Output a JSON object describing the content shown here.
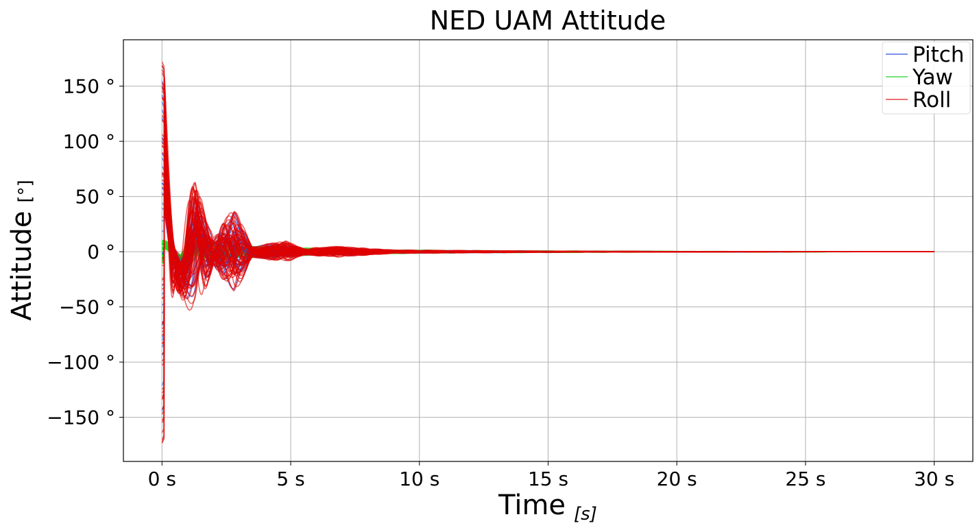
{
  "chart_data": {
    "type": "line",
    "title": "NED UAM Attitude",
    "xlabel": "Time",
    "xlabel_unit": "[s]",
    "ylabel": "Attitude",
    "ylabel_unit": "[°]",
    "xlim": [
      -1.5,
      31.5
    ],
    "ylim": [
      -190,
      192
    ],
    "xticks": [
      0,
      5,
      10,
      15,
      20,
      25,
      30
    ],
    "xtick_labels": [
      "0 s",
      "5 s",
      "10 s",
      "15 s",
      "20 s",
      "25 s",
      "30 s"
    ],
    "yticks": [
      150,
      100,
      50,
      0,
      -50,
      -100,
      -150
    ],
    "ytick_labels": [
      "150 °",
      "100 °",
      "50 °",
      "0 °",
      "−50 °",
      "−100 °",
      "−150 °"
    ],
    "grid": true,
    "legend_position": "top-right",
    "series": [
      {
        "name": "Pitch",
        "color": "#1f3fe0",
        "envelope": {
          "t": [
            0,
            0.1,
            0.5,
            1.2,
            2.0,
            2.8,
            3.5,
            4.5,
            5.5,
            7,
            9,
            12,
            15,
            20,
            30
          ],
          "upper": [
            155,
            150,
            25,
            55,
            15,
            40,
            5,
            8,
            3,
            4,
            1.5,
            1,
            0.5,
            0.2,
            0
          ],
          "lower": [
            -160,
            -150,
            -30,
            -55,
            -10,
            -35,
            -5,
            -8,
            -3,
            -4,
            -1.5,
            -1,
            -0.5,
            -0.2,
            0
          ]
        }
      },
      {
        "name": "Yaw",
        "color": "#22dd22",
        "envelope": {
          "t": [
            0,
            0.5,
            1.5,
            3,
            5,
            8,
            12,
            20,
            30
          ],
          "upper": [
            10,
            15,
            10,
            6,
            4,
            2,
            1,
            0.3,
            0
          ],
          "lower": [
            -10,
            -15,
            -10,
            -6,
            -4,
            -2,
            -1,
            -0.3,
            0
          ]
        }
      },
      {
        "name": "Roll",
        "color": "#e00000",
        "envelope": {
          "t": [
            0,
            0.1,
            0.5,
            1.3,
            2.0,
            2.8,
            3.5,
            4.8,
            5.5,
            6.8,
            9,
            12,
            15,
            20,
            30
          ],
          "upper": [
            175,
            170,
            30,
            65,
            15,
            45,
            5,
            10,
            3,
            5,
            1.5,
            1,
            0.5,
            0.2,
            0
          ],
          "lower": [
            -175,
            -170,
            -35,
            -65,
            -10,
            -40,
            -5,
            -10,
            -3,
            -5,
            -1.5,
            -1,
            -0.5,
            -0.2,
            0
          ]
        }
      }
    ]
  }
}
